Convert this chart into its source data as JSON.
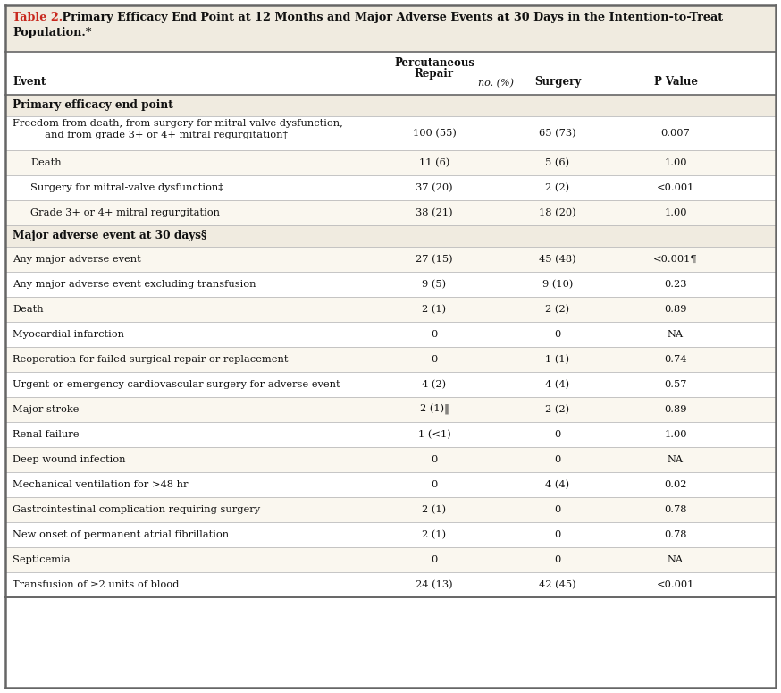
{
  "title_bold": "Table 2.",
  "title_rest": " Primary Efficacy End Point at 12 Months and Major Adverse Events at 30 Days in the Intention-to-Treat\nPopulation.*",
  "col_headers_line1": [
    "",
    "Percutaneous",
    "Surgery",
    "P Value"
  ],
  "col_headers_line2": [
    "Event",
    "Repair",
    "",
    ""
  ],
  "subheader": "no. (%)",
  "rows": [
    {
      "type": "section",
      "label": "Primary efficacy end point",
      "percutaneous": "",
      "surgery": "",
      "pvalue": ""
    },
    {
      "type": "data_main2",
      "label": "Freedom from death, from surgery for mitral-valve dysfunction,",
      "label2": "     and from grade 3+ or 4+ mitral regurgitation†",
      "percutaneous": "100 (55)",
      "surgery": "65 (73)",
      "pvalue": "0.007"
    },
    {
      "type": "data_indent",
      "label": "Death",
      "percutaneous": "11 (6)",
      "surgery": "5 (6)",
      "pvalue": "1.00"
    },
    {
      "type": "data_indent",
      "label": "Surgery for mitral-valve dysfunction‡",
      "percutaneous": "37 (20)",
      "surgery": "2 (2)",
      "pvalue": "<0.001"
    },
    {
      "type": "data_indent",
      "label": "Grade 3+ or 4+ mitral regurgitation",
      "percutaneous": "38 (21)",
      "surgery": "18 (20)",
      "pvalue": "1.00"
    },
    {
      "type": "section",
      "label": "Major adverse event at 30 days§",
      "percutaneous": "",
      "surgery": "",
      "pvalue": ""
    },
    {
      "type": "data_main",
      "label": "Any major adverse event",
      "percutaneous": "27 (15)",
      "surgery": "45 (48)",
      "pvalue": "<0.001¶"
    },
    {
      "type": "data_main",
      "label": "Any major adverse event excluding transfusion",
      "percutaneous": "9 (5)",
      "surgery": "9 (10)",
      "pvalue": "0.23"
    },
    {
      "type": "data_main",
      "label": "Death",
      "percutaneous": "2 (1)",
      "surgery": "2 (2)",
      "pvalue": "0.89"
    },
    {
      "type": "data_main",
      "label": "Myocardial infarction",
      "percutaneous": "0",
      "surgery": "0",
      "pvalue": "NA"
    },
    {
      "type": "data_main",
      "label": "Reoperation for failed surgical repair or replacement",
      "percutaneous": "0",
      "surgery": "1 (1)",
      "pvalue": "0.74"
    },
    {
      "type": "data_main",
      "label": "Urgent or emergency cardiovascular surgery for adverse event",
      "percutaneous": "4 (2)",
      "surgery": "4 (4)",
      "pvalue": "0.57"
    },
    {
      "type": "data_main",
      "label": "Major stroke",
      "percutaneous": "2 (1)‖",
      "surgery": "2 (2)",
      "pvalue": "0.89"
    },
    {
      "type": "data_main",
      "label": "Renal failure",
      "percutaneous": "1 (<1)",
      "surgery": "0",
      "pvalue": "1.00"
    },
    {
      "type": "data_main",
      "label": "Deep wound infection",
      "percutaneous": "0",
      "surgery": "0",
      "pvalue": "NA"
    },
    {
      "type": "data_main",
      "label": "Mechanical ventilation for >48 hr",
      "percutaneous": "0",
      "surgery": "4 (4)",
      "pvalue": "0.02"
    },
    {
      "type": "data_main",
      "label": "Gastrointestinal complication requiring surgery",
      "percutaneous": "2 (1)",
      "surgery": "0",
      "pvalue": "0.78"
    },
    {
      "type": "data_main",
      "label": "New onset of permanent atrial fibrillation",
      "percutaneous": "2 (1)",
      "surgery": "0",
      "pvalue": "0.78"
    },
    {
      "type": "data_main",
      "label": "Septicemia",
      "percutaneous": "0",
      "surgery": "0",
      "pvalue": "NA"
    },
    {
      "type": "data_main",
      "label": "Transfusion of ≥2 units of blood",
      "percutaneous": "24 (13)",
      "surgery": "42 (45)",
      "pvalue": "<0.001"
    }
  ],
  "bg_title": "#f0ebe0",
  "bg_section": "#f0ebe0",
  "bg_white": "#ffffff",
  "bg_alt": "#faf7ef",
  "border_color": "#666666",
  "divider_color": "#bbbbbb",
  "title_red": "#c8281e",
  "text_color": "#111111",
  "font_size": 8.2,
  "header_font_size": 8.5,
  "title_font_size": 9.2
}
